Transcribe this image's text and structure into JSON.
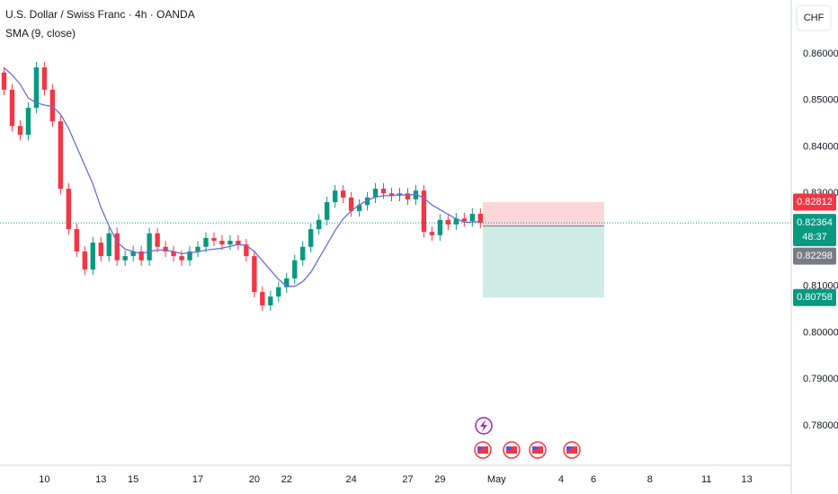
{
  "chart_data": {
    "type": "candlestick",
    "title": "U.S. Dollar / Swiss Franc · 4h · OANDA",
    "subtitle": "SMA (9, close)",
    "currency": "CHF",
    "up_color": "#089981",
    "down_color": "#f23645",
    "grid": false,
    "ylim": [
      0.7715,
      0.8716
    ],
    "yticks": [
      {
        "value": 0.86,
        "label": "0.86000"
      },
      {
        "value": 0.85,
        "label": "0.85000"
      },
      {
        "value": 0.84,
        "label": "0.84000"
      },
      {
        "value": 0.83,
        "label": "0.83000"
      },
      {
        "value": 0.81,
        "label": "0.81000"
      },
      {
        "value": 0.8,
        "label": "0.80000"
      },
      {
        "value": 0.79,
        "label": "0.79000"
      },
      {
        "value": 0.78,
        "label": "0.78000"
      }
    ],
    "categories": [
      null,
      null,
      null,
      null,
      null,
      "10",
      null,
      null,
      null,
      null,
      null,
      null,
      "13",
      null,
      null,
      null,
      "15",
      null,
      null,
      null,
      null,
      null,
      null,
      null,
      "17",
      null,
      null,
      null,
      null,
      null,
      null,
      "20",
      null,
      null,
      null,
      "22",
      null,
      null,
      null,
      null,
      null,
      null,
      null,
      "24",
      null,
      null,
      null,
      null,
      null,
      null,
      "27",
      null,
      null,
      null,
      "29",
      null,
      null,
      null,
      null,
      null,
      null,
      "May",
      null,
      null,
      null,
      null,
      null,
      null,
      null,
      "4",
      null,
      null,
      null,
      "6",
      null,
      null,
      null,
      null,
      null,
      null,
      "8",
      null,
      null,
      null,
      null,
      null,
      null,
      "11",
      null,
      null,
      null,
      null,
      "13",
      null,
      null,
      null,
      null,
      null
    ],
    "open": [
      0.856,
      0.8523,
      0.8445,
      0.8426,
      0.8484,
      0.8571,
      0.8523,
      0.8455,
      0.831,
      0.8223,
      0.8175,
      0.8136,
      0.8194,
      0.8165,
      0.8214,
      0.8156,
      0.8165,
      0.8175,
      0.8156,
      0.8214,
      0.8185,
      0.8175,
      0.8165,
      0.8156,
      0.8175,
      0.8185,
      0.8204,
      0.8198,
      0.819,
      0.8198,
      0.819,
      0.8165,
      0.8088,
      0.8059,
      0.8078,
      0.8098,
      0.8117,
      0.8156,
      0.8185,
      0.8223,
      0.8243,
      0.8281,
      0.8306,
      0.8291,
      0.8262,
      0.8275,
      0.8291,
      0.831,
      0.83,
      0.8295,
      0.83,
      0.8287,
      0.8306,
      0.8217,
      0.821,
      0.8243,
      0.8233,
      0.8246,
      0.824,
      0.8256,
      null,
      null,
      null,
      null,
      null,
      null,
      null,
      null,
      null,
      null,
      null,
      null,
      null,
      null,
      null,
      null,
      null,
      null,
      null,
      null,
      null,
      null,
      null,
      null,
      null,
      null,
      null,
      null,
      null,
      null,
      null,
      null,
      null,
      null,
      null,
      null,
      null,
      null
    ],
    "high": [
      0.8572,
      0.8535,
      0.8457,
      0.8496,
      0.8583,
      0.8583,
      0.8535,
      0.8467,
      0.8322,
      0.8235,
      0.8187,
      0.8206,
      0.8206,
      0.8226,
      0.8226,
      0.8177,
      0.8187,
      0.8187,
      0.8226,
      0.8226,
      0.8197,
      0.8187,
      0.8177,
      0.8187,
      0.8197,
      0.8216,
      0.8216,
      0.821,
      0.821,
      0.821,
      0.8202,
      0.8177,
      0.81,
      0.809,
      0.811,
      0.8129,
      0.8168,
      0.8197,
      0.8235,
      0.8255,
      0.8293,
      0.8318,
      0.8318,
      0.8303,
      0.8287,
      0.8303,
      0.8322,
      0.8322,
      0.8312,
      0.8312,
      0.8312,
      0.8318,
      0.8318,
      0.8229,
      0.8255,
      0.8255,
      0.8258,
      0.8258,
      0.8268,
      0.8268,
      null,
      null,
      null,
      null,
      null,
      null,
      null,
      null,
      null,
      null,
      null,
      null,
      null,
      null,
      null,
      null,
      null,
      null,
      null,
      null,
      null,
      null,
      null,
      null,
      null,
      null,
      null,
      null,
      null,
      null,
      null,
      null,
      null,
      null,
      null,
      null,
      null,
      null
    ],
    "low": [
      0.8511,
      0.8433,
      0.8414,
      0.8414,
      0.8472,
      0.8511,
      0.8443,
      0.8298,
      0.8211,
      0.8163,
      0.8124,
      0.8124,
      0.8153,
      0.8153,
      0.8144,
      0.8144,
      0.8153,
      0.8144,
      0.8144,
      0.8173,
      0.8163,
      0.8153,
      0.8144,
      0.8144,
      0.8163,
      0.8173,
      0.8186,
      0.8178,
      0.8178,
      0.8178,
      0.8153,
      0.8076,
      0.8047,
      0.8047,
      0.8066,
      0.8086,
      0.8105,
      0.8144,
      0.8173,
      0.8211,
      0.8231,
      0.8269,
      0.8279,
      0.825,
      0.825,
      0.8263,
      0.8279,
      0.8288,
      0.8283,
      0.8283,
      0.8275,
      0.8275,
      0.8205,
      0.8198,
      0.8198,
      0.8221,
      0.8221,
      0.8228,
      0.8228,
      0.8225,
      null,
      null,
      null,
      null,
      null,
      null,
      null,
      null,
      null,
      null,
      null,
      null,
      null,
      null,
      null,
      null,
      null,
      null,
      null,
      null,
      null,
      null,
      null,
      null,
      null,
      null,
      null,
      null,
      null,
      null,
      null,
      null,
      null,
      null,
      null,
      null,
      null,
      null
    ],
    "close": [
      0.8523,
      0.8445,
      0.8426,
      0.8484,
      0.8571,
      0.8523,
      0.8455,
      0.831,
      0.8223,
      0.8175,
      0.8136,
      0.8194,
      0.8165,
      0.8214,
      0.8156,
      0.8165,
      0.8175,
      0.8156,
      0.8214,
      0.8185,
      0.8175,
      0.8165,
      0.8156,
      0.8175,
      0.8185,
      0.8204,
      0.8198,
      0.819,
      0.8198,
      0.819,
      0.8165,
      0.8088,
      0.8059,
      0.8078,
      0.8098,
      0.8117,
      0.8156,
      0.8185,
      0.8223,
      0.8243,
      0.8281,
      0.8306,
      0.8291,
      0.8262,
      0.8275,
      0.8291,
      0.831,
      0.83,
      0.8295,
      0.83,
      0.8287,
      0.8306,
      0.8217,
      0.821,
      0.8243,
      0.8233,
      0.8246,
      0.824,
      0.8256,
      0.82364,
      null,
      null,
      null,
      null,
      null,
      null,
      null,
      null,
      null,
      null,
      null,
      null,
      null,
      null,
      null,
      null,
      null,
      null,
      null,
      null,
      null,
      null,
      null,
      null,
      null,
      null,
      null,
      null,
      null,
      null,
      null,
      null,
      null,
      null,
      null,
      null,
      null,
      null
    ],
    "series": [
      {
        "name": "SMA (9, close)",
        "color": "#6e6bd6",
        "values": [
          0.857,
          0.8555,
          0.8535,
          0.8505,
          0.8495,
          0.849,
          0.8487,
          0.847,
          0.844,
          0.84,
          0.836,
          0.832,
          0.827,
          0.823,
          0.8195,
          0.818,
          0.8175,
          0.817,
          0.8175,
          0.8178,
          0.8178,
          0.8175,
          0.817,
          0.8172,
          0.8174,
          0.8178,
          0.818,
          0.8182,
          0.8186,
          0.819,
          0.8188,
          0.8175,
          0.8155,
          0.8135,
          0.8115,
          0.81,
          0.81,
          0.811,
          0.813,
          0.816,
          0.819,
          0.822,
          0.8245,
          0.8262,
          0.8275,
          0.8285,
          0.8292,
          0.8295,
          0.8295,
          0.8297,
          0.8296,
          0.8298,
          0.829,
          0.8275,
          0.8265,
          0.8255,
          0.8245,
          0.8238,
          0.8238,
          0.824,
          null,
          null,
          null,
          null,
          null,
          null,
          null,
          null,
          null,
          null,
          null,
          null,
          null,
          null,
          null,
          null,
          null,
          null,
          null,
          null,
          null,
          null,
          null,
          null,
          null,
          null,
          null,
          null,
          null,
          null,
          null,
          null,
          null,
          null,
          null,
          null,
          null,
          null
        ]
      }
    ],
    "position": {
      "stop": {
        "value": 0.82812,
        "label": "0.82812",
        "color": "#f23645"
      },
      "entry": {
        "value": 0.82298,
        "label": "0.82298",
        "color": "#787b86"
      },
      "target": {
        "value": 0.80758,
        "label": "0.80758",
        "color": "#089981"
      }
    },
    "last_price": {
      "value": 0.82364,
      "label": "0.82364",
      "countdown": "48:37",
      "color": "#089981"
    }
  }
}
